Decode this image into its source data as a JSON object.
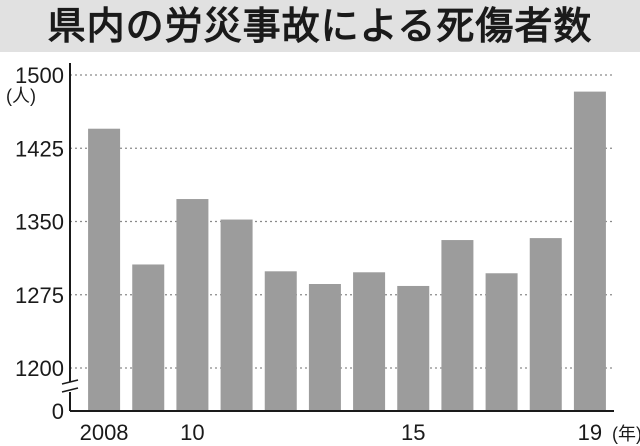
{
  "title": "県内の労災事故による死傷者数",
  "colors": {
    "bar": "#9c9c9c",
    "grid": "#8a8a8a",
    "axis": "#1a1a1a",
    "title_band": "#e1e1e1"
  },
  "chart_data": {
    "type": "bar",
    "title": "県内の労災事故による死傷者数",
    "ylabel": "(人)",
    "xlabel_unit": "(年)",
    "categories": [
      "2008",
      "2009",
      "2010",
      "2011",
      "2012",
      "2013",
      "2014",
      "2015",
      "2016",
      "2017",
      "2018",
      "2019"
    ],
    "x_tick_labels": [
      "2008",
      "",
      "10",
      "",
      "",
      "",
      "",
      "15",
      "",
      "",
      "",
      "19"
    ],
    "values": [
      1445,
      1306,
      1373,
      1352,
      1299,
      1286,
      1298,
      1284,
      1331,
      1297,
      1333,
      1483
    ],
    "y_ticks": [
      1200,
      1275,
      1350,
      1425,
      1500
    ],
    "y_tick_labels": [
      "1200",
      "1275",
      "1350",
      "1425",
      "1500"
    ],
    "y_baseline_label": "0",
    "ylim": [
      1200,
      1500
    ],
    "axis_break": true,
    "grid": "horizontal-dotted",
    "legend": "none"
  }
}
